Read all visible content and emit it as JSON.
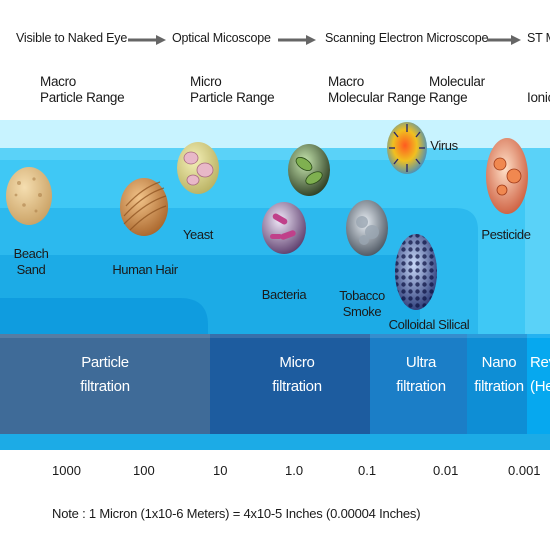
{
  "scale_header": [
    "Visible to Naked Eye",
    "Optical Micoscope",
    "Scanning Electron Microscope",
    "ST M"
  ],
  "ranges": [
    "Macro\nParticle Range",
    "Micro\nParticle Range",
    "Macro\nMolecular Range",
    "Molecular\nRange",
    "Ionic"
  ],
  "particles": [
    {
      "label": "Beach Sand",
      "icon": "beach-sand"
    },
    {
      "label": "Human Hair",
      "icon": "human-hair"
    },
    {
      "label": "Yeast",
      "icon": "yeast"
    },
    {
      "label": "Bacteria",
      "icon": "bacteria"
    },
    {
      "label": "Tobacco\nSmoke",
      "icon": "tobacco-smoke"
    },
    {
      "label": "Virus",
      "icon": "virus"
    },
    {
      "label": "Colloidal Silical",
      "icon": "colloidal-silica"
    },
    {
      "label": "Pesticide",
      "icon": "pesticide"
    }
  ],
  "filtration": [
    "Particle\nfiltration",
    "Micro\nfiltration",
    "Ultra\nfiltration",
    "Nano\nfiltration",
    "Rev\n(He"
  ],
  "ticks": [
    "1000",
    "100",
    "10",
    "1.0",
    "0.1",
    "0.01",
    "0.001"
  ],
  "note": "Note : 1 Micron (1x10-6 Meters) = 4x10-5 Inches (0.00004 Inches)",
  "colors": {
    "light_band": "#7fe0ff",
    "mid_band": "#33c4f4",
    "dark_band": "#00a6e8",
    "particle_band": "#3c6d9c",
    "micro_band": "#1c5ea0",
    "ultra_band": "#1a7dc6",
    "nano_band": "#0e8fd6",
    "reverse_band": "#02a6ee"
  }
}
